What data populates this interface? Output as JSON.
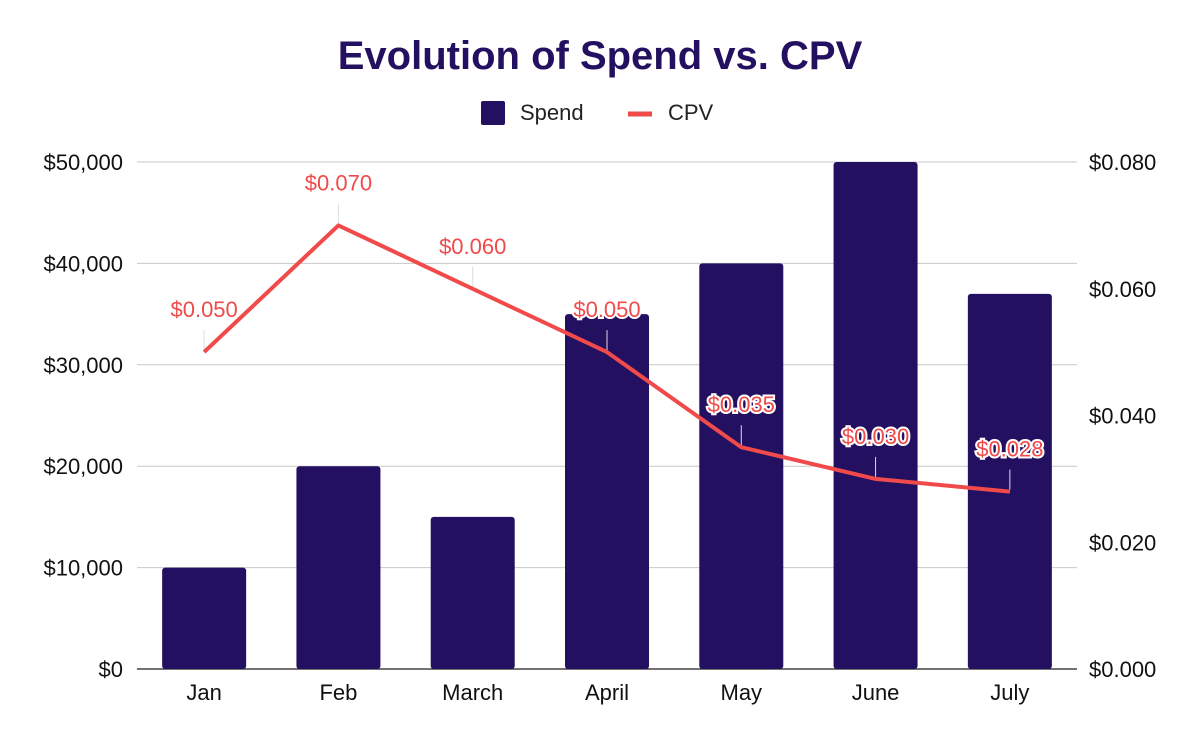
{
  "chart_data": {
    "type": "bar",
    "title": "Evolution of Spend vs. CPV",
    "categories": [
      "Jan",
      "Feb",
      "March",
      "April",
      "May",
      "June",
      "July"
    ],
    "series": [
      {
        "name": "Spend",
        "type": "bar",
        "axis": "left",
        "color": "#241060",
        "values": [
          10000,
          20000,
          15000,
          35000,
          40000,
          50000,
          37000
        ]
      },
      {
        "name": "CPV",
        "type": "line",
        "axis": "right",
        "color": "#f04a4a",
        "values": [
          0.05,
          0.07,
          0.06,
          0.05,
          0.035,
          0.03,
          0.028
        ],
        "labels": [
          "$0.050",
          "$0.070",
          "$0.060",
          "$0.050",
          "$0.035",
          "$0.030",
          "$0.028"
        ]
      }
    ],
    "y_left": {
      "ylim": [
        0,
        50000
      ],
      "ticks": [
        "$0",
        "$10,000",
        "$20,000",
        "$30,000",
        "$40,000",
        "$50,000"
      ]
    },
    "y_right": {
      "ylim": [
        0,
        0.08
      ],
      "ticks": [
        "$0.000",
        "$0.020",
        "$0.040",
        "$0.060",
        "$0.080"
      ]
    },
    "xlabel": "",
    "ylabel": "",
    "grid": true,
    "legend_position": "top-center"
  }
}
